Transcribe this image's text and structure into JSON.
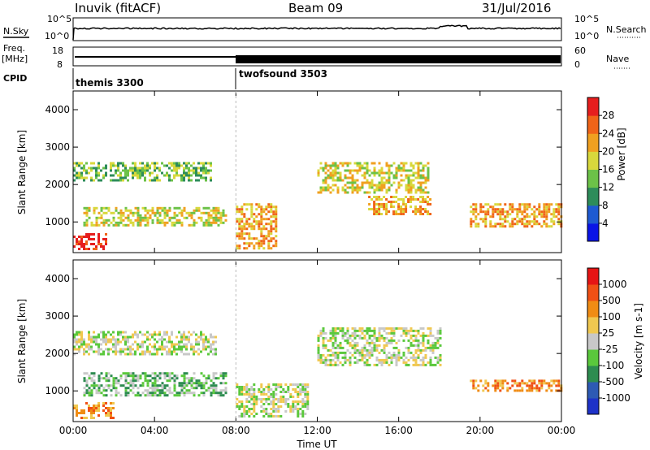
{
  "header": {
    "station": "Inuvik (fitACF)",
    "beam": "Beam 09",
    "date": "31/Jul/2016"
  },
  "noise": {
    "left_label": "N.Sky",
    "right_label": "N.Search",
    "left_ticks": [
      "10^5",
      "10^0"
    ],
    "right_ticks": [
      "10^5",
      "10^0"
    ]
  },
  "freq": {
    "left_label_1": "Freq.",
    "left_label_2": "[MHz]",
    "left_ticks": [
      "18",
      "8"
    ],
    "right_label": "Nave",
    "right_ticks": [
      "60",
      "0"
    ]
  },
  "cpid": {
    "label": "CPID",
    "segments": [
      {
        "name": "themis 3300",
        "start_hour": 0
      },
      {
        "name": "twofsound 3503",
        "start_hour": 8
      }
    ]
  },
  "chart_data": [
    {
      "type": "heatmap",
      "panel": "power",
      "ylabel": "Slant Range [km]",
      "yticks": [
        "1000",
        "2000",
        "3000",
        "4000"
      ],
      "ylim": [
        180,
        4500
      ],
      "xticks": [
        "00:00",
        "04:00",
        "08:00",
        "12:00",
        "16:00",
        "20:00",
        "00:00"
      ],
      "xlim_hours": [
        0,
        24
      ],
      "colorbar": {
        "label": "Power [dB]",
        "ticks": [
          "4",
          "8",
          "12",
          "16",
          "20",
          "24",
          "28"
        ],
        "colors": [
          "#0a14e6",
          "#1e5ad2",
          "#2d8c5a",
          "#6cc248",
          "#d8d83c",
          "#f0a020",
          "#f06418",
          "#e61e1e"
        ]
      },
      "echo_bands": [
        {
          "t0": 0.0,
          "t1": 1.6,
          "r0": 300,
          "r1": 700,
          "level": 7
        },
        {
          "t0": 0.0,
          "t1": 6.8,
          "r0": 2100,
          "r1": 2600,
          "level": 3
        },
        {
          "t0": 0.5,
          "t1": 7.5,
          "r0": 900,
          "r1": 1400,
          "level": 4
        },
        {
          "t0": 8.0,
          "t1": 10.0,
          "r0": 300,
          "r1": 1500,
          "level": 5
        },
        {
          "t0": 12.0,
          "t1": 17.5,
          "r0": 1800,
          "r1": 2600,
          "level": 4
        },
        {
          "t0": 14.5,
          "t1": 17.5,
          "r0": 1200,
          "r1": 1700,
          "level": 5
        },
        {
          "t0": 19.5,
          "t1": 24.0,
          "r0": 900,
          "r1": 1500,
          "level": 5
        }
      ]
    },
    {
      "type": "heatmap",
      "panel": "velocity",
      "ylabel": "Slant Range [km]",
      "yticks": [
        "1000",
        "2000",
        "3000",
        "4000"
      ],
      "ylim": [
        180,
        4500
      ],
      "xticks": [
        "00:00",
        "04:00",
        "08:00",
        "12:00",
        "16:00",
        "20:00",
        "00:00"
      ],
      "xlim_hours": [
        0,
        24
      ],
      "xlabel": "Time UT",
      "colorbar": {
        "label": "Velocity [m s-1]",
        "ticks": [
          "1000",
          "500",
          "100",
          "25",
          "-25",
          "-100",
          "-500",
          "-1000"
        ],
        "colors": [
          "#1e32c8",
          "#2d5ab4",
          "#2d8c50",
          "#5ac83c",
          "#c8c8c8",
          "#f0c850",
          "#f08c14",
          "#f05014",
          "#e61414"
        ]
      },
      "echo_bands": [
        {
          "t0": 0.0,
          "t1": 2.0,
          "r0": 300,
          "r1": 700,
          "level": 6
        },
        {
          "t0": 0.0,
          "t1": 7.0,
          "r0": 2000,
          "r1": 2600,
          "level": 4
        },
        {
          "t0": 0.5,
          "t1": 7.5,
          "r0": 900,
          "r1": 1500,
          "level": 3
        },
        {
          "t0": 8.0,
          "t1": 11.5,
          "r0": 300,
          "r1": 1200,
          "level": 4
        },
        {
          "t0": 12.0,
          "t1": 18.0,
          "r0": 1700,
          "r1": 2700,
          "level": 4
        },
        {
          "t0": 19.5,
          "t1": 24.0,
          "r0": 1000,
          "r1": 1300,
          "level": 6
        }
      ]
    }
  ]
}
